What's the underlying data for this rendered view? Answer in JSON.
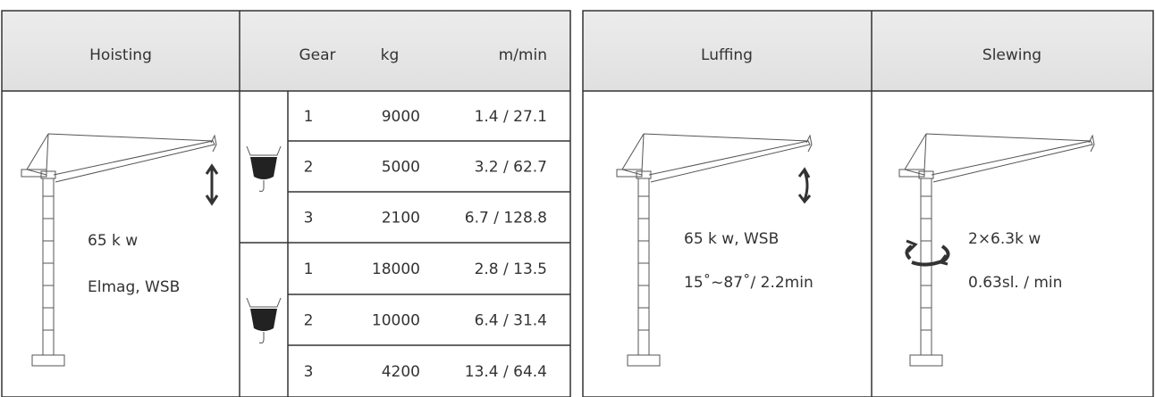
{
  "hoisting_table": {
    "header": {
      "hoisting": "Hoisting",
      "gear": "Gear",
      "kg": "kg",
      "speed": "m/min"
    },
    "power": "65 k w",
    "brake": "Elmag, WSB",
    "rows": [
      [
        "1",
        "9000",
        "1.4 / 27.1"
      ],
      [
        "2",
        "5000",
        "3.2 / 62.7"
      ],
      [
        "3",
        "2100",
        "6.7 / 128.8"
      ],
      [
        "1",
        "18000",
        "2.8 / 13.5"
      ],
      [
        "2",
        "10000",
        "6.4 / 31.4"
      ],
      [
        "3",
        "4200",
        "13.4 / 64.4"
      ]
    ]
  },
  "luffing_table": {
    "header": {
      "luffing": "Luffing",
      "slewing": "Slewing"
    },
    "luffing_power": "65 k w, WSB",
    "luffing_range": "15˚~87˚/ 2.2min",
    "slewing_power": "2×6.3k w",
    "slewing_speed": "0.63sl. / min"
  }
}
